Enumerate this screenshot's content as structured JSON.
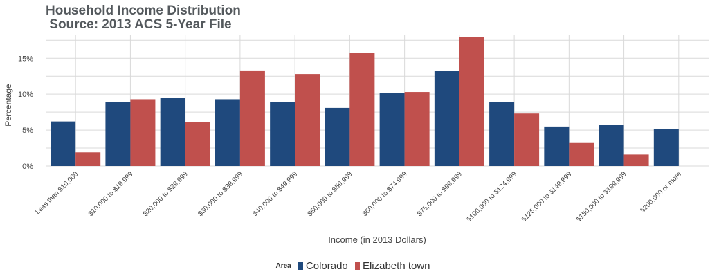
{
  "chart_data": {
    "type": "bar",
    "title": "Household Income Distribution",
    "subtitle": "Source: 2013 ACS 5-Year File",
    "xlabel": "Income (in 2013 Dollars)",
    "ylabel": "Percentage",
    "ylim": [
      0,
      0.183
    ],
    "yticks": [
      0,
      0.05,
      0.1,
      0.15
    ],
    "ytick_labels": [
      "0%",
      "5%",
      "10%",
      "15%"
    ],
    "grid": true,
    "legend_position": "bottom",
    "legend_title": "Area",
    "categories": [
      "Less than $10,000",
      "$10,000 to $19,999",
      "$20,000 to $29,999",
      "$30,000 to $39,999",
      "$40,000 to $49,999",
      "$50,000 to $59,999",
      "$60,000 to $74,999",
      "$75,000 to $99,999",
      "$100,000 to $124,999",
      "$125,000 to $149,999",
      "$150,000 to $199,999",
      "$200,000 or more"
    ],
    "series": [
      {
        "name": "Colorado",
        "color": "#1f497d",
        "values": [
          0.062,
          0.089,
          0.095,
          0.093,
          0.089,
          0.081,
          0.102,
          0.132,
          0.089,
          0.055,
          0.057,
          0.052
        ]
      },
      {
        "name": "Elizabeth town",
        "color": "#c0504d",
        "values": [
          0.019,
          0.093,
          0.061,
          0.133,
          0.128,
          0.157,
          0.103,
          0.18,
          0.073,
          0.033,
          0.016,
          0.0
        ]
      }
    ]
  }
}
